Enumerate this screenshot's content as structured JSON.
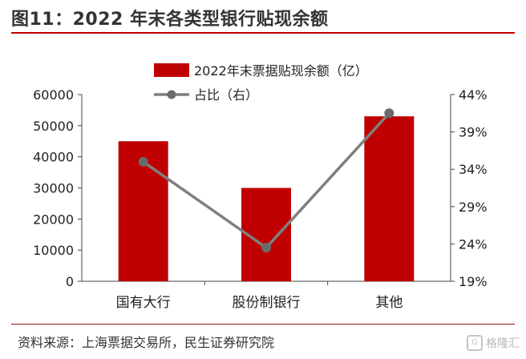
{
  "figure_title": "图11：2022 年末各类型银行贴现余额",
  "source": "资料来源：上海票据交易所，民生证券研究院",
  "watermark": {
    "mark": "G",
    "text": "格隆汇"
  },
  "colors": {
    "bar": "#c00000",
    "line": "#7f7f7f",
    "title_rule": "#c00000"
  },
  "chart_data": {
    "type": "bar",
    "categories": [
      "国有大行",
      "股份制银行",
      "其他"
    ],
    "series": [
      {
        "name": "2022年末票据贴现余额（亿）",
        "type": "bar",
        "axis": "left",
        "values": [
          45000,
          30000,
          53000
        ]
      },
      {
        "name": "占比（右）",
        "type": "line",
        "axis": "right",
        "values": [
          35.0,
          23.5,
          41.5
        ]
      }
    ],
    "y_left": {
      "ylim": [
        0,
        60000
      ],
      "ticks": [
        "0",
        "10000",
        "20000",
        "30000",
        "40000",
        "50000",
        "60000"
      ]
    },
    "y_right": {
      "ylim": [
        19,
        44
      ],
      "ticks": [
        "19%",
        "24%",
        "29%",
        "34%",
        "39%",
        "44%"
      ]
    },
    "legend_position": "top",
    "grid": false
  }
}
